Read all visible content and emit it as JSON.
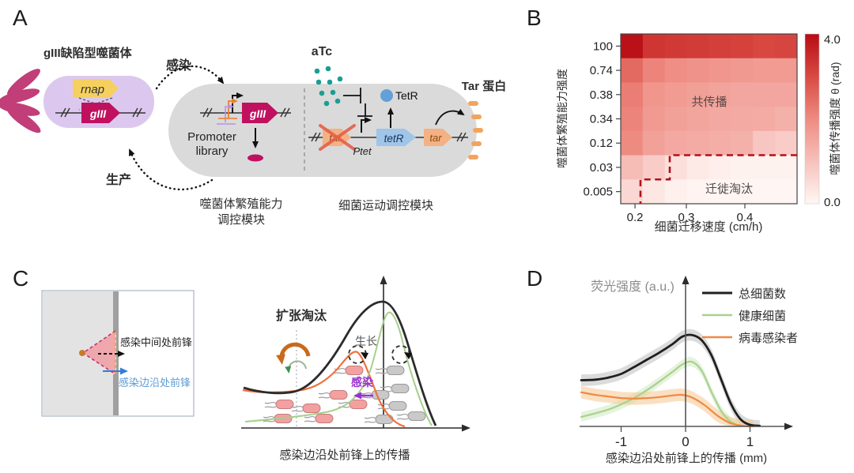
{
  "colors": {
    "accent_red": "#b80b14",
    "boundary_red": "#b2101c",
    "teal_dots": "#199e93",
    "magenta_gene": "#c0115f",
    "phage_body_purple": "#dcc8ef",
    "phage_flagella": "#c13e78",
    "rnap_yellow": "#f6d05e",
    "orange_gene": "#f4b183",
    "blue_gene": "#9fc5e8",
    "tetr_protein_blue": "#64a0d8",
    "cell_gray": "#dadada",
    "infected_pink": "#f2a0a0",
    "healthy_gray": "#c9c9c9",
    "infection_purple": "#9b30d0",
    "edge_front_blue": "#2f7fd6",
    "cross_red": "#e4604a"
  },
  "panels": {
    "A": {
      "label": "A",
      "phage_title": "gIII缺陷型噬菌体",
      "infect": "感染",
      "produce": "生产",
      "rnap": "rnap",
      "gIII_phage": "gIII",
      "promoter_line1": "Promoter",
      "promoter_line2": "library",
      "gIII_cell": "gIII",
      "module1_line1": "噬菌体繁殖能力",
      "module1_line2": "调控模块",
      "aTc": "aTc",
      "TetR_label": "TetR",
      "tar_crossed": "tar",
      "ptet": "Ptet",
      "tetR_gene": "tetR",
      "tar_gene": "tar",
      "tar_protein": "Tar 蛋白",
      "module2": "细菌运动调控模块"
    },
    "B": {
      "label": "B"
    },
    "C": {
      "label": "C",
      "front_mid": "感染中间处前锋",
      "front_edge": "感染边沿处前锋",
      "expansion": "扩张淘汰",
      "growth": "生长",
      "infection": "感染",
      "caption": "感染边沿处前锋上的传播",
      "bacteria": {
        "infected": [
          [
            448,
            469
          ],
          [
            428,
            500
          ],
          [
            360,
            512
          ],
          [
            394,
            517
          ],
          [
            358,
            530
          ],
          [
            410,
            530
          ],
          [
            453,
            512
          ]
        ],
        "healthy": [
          [
            500,
            469
          ],
          [
            506,
            492
          ],
          [
            481,
            500
          ],
          [
            503,
            514
          ],
          [
            527,
            527
          ],
          [
            486,
            531
          ]
        ]
      }
    },
    "D": {
      "label": "D"
    }
  },
  "chart_data": [
    {
      "type": "heatmap",
      "xlabel": "细菌迁移速度 (cm/h)",
      "ylabel": "噬菌体繁殖能力强度",
      "yticklabels": [
        "100",
        "0.74",
        "0.38",
        "0.34",
        "0.12",
        "0.03",
        "0.005"
      ],
      "xticks": [
        {
          "label": "0.2",
          "t": 0.081
        },
        {
          "label": "0.3",
          "t": 0.372
        },
        {
          "label": "0.4",
          "t": 0.704
        }
      ],
      "vmin": 0.0,
      "vmax": 4.0,
      "values": [
        [
          3.9,
          3.3,
          3.25,
          3.2,
          3.15,
          3.1,
          3.0,
          3.05
        ],
        [
          2.5,
          2.1,
          1.95,
          1.85,
          1.8,
          1.75,
          1.7,
          1.7
        ],
        [
          2.2,
          1.8,
          1.7,
          1.62,
          1.55,
          1.5,
          1.5,
          1.5
        ],
        [
          2.1,
          1.72,
          1.6,
          1.52,
          1.45,
          1.42,
          1.4,
          1.3
        ],
        [
          2.0,
          1.6,
          1.45,
          1.4,
          1.35,
          1.3,
          0.9,
          0.8
        ],
        [
          1.1,
          0.8,
          0.45,
          0.25,
          0.15,
          0.1,
          0.1,
          0.1
        ],
        [
          0.6,
          0.3,
          0.12,
          0.05,
          0.02,
          0.02,
          0.02,
          0.02
        ]
      ],
      "regions": [
        {
          "label": "共传播"
        },
        {
          "label": "迁徙淘汰"
        }
      ],
      "boundary_norm": [
        [
          1.0,
          0.714
        ],
        [
          0.278,
          0.714
        ],
        [
          0.278,
          0.857
        ],
        [
          0.112,
          0.857
        ],
        [
          0.112,
          1.0
        ]
      ],
      "colorbar": {
        "label": "噬菌体传播强度 θ (rad)",
        "tick_top": "4.0",
        "tick_bottom": "0.0"
      }
    },
    {
      "type": "line",
      "ylabel": "荧光强度 (a.u.)",
      "xlabel": "感染边沿处前锋上的传播 (mm)",
      "xticks": [
        -1,
        0,
        1
      ],
      "xlim": [
        -1.65,
        1.45
      ],
      "legend_position": "top-right",
      "series": [
        {
          "name": "总细菌数",
          "color": "#1f1f1f",
          "band_color": "#bdbdbd",
          "band_halfwidth": 0.055,
          "x": [
            -1.62,
            -1.4,
            -1.2,
            -1.0,
            -0.8,
            -0.6,
            -0.4,
            -0.2,
            -0.05,
            0.1,
            0.25,
            0.4,
            0.55,
            0.7,
            0.85,
            1.0,
            1.15
          ],
          "y": [
            0.44,
            0.445,
            0.465,
            0.5,
            0.565,
            0.635,
            0.705,
            0.785,
            0.855,
            0.87,
            0.82,
            0.68,
            0.45,
            0.22,
            0.07,
            0.015,
            0.005
          ]
        },
        {
          "name": "健康细菌",
          "color": "#a9d18e",
          "band_color": "#cfe9c0",
          "band_halfwidth": 0.045,
          "x": [
            -1.62,
            -1.4,
            -1.2,
            -1.0,
            -0.8,
            -0.6,
            -0.4,
            -0.2,
            -0.05,
            0.1,
            0.25,
            0.4,
            0.55,
            0.7,
            0.85
          ],
          "y": [
            0.09,
            0.125,
            0.16,
            0.21,
            0.27,
            0.345,
            0.43,
            0.52,
            0.59,
            0.615,
            0.53,
            0.33,
            0.15,
            0.045,
            0.005
          ]
        },
        {
          "name": "病毒感染者",
          "color": "#ee8a45",
          "band_color": "#f6c690",
          "band_halfwidth": 0.06,
          "x": [
            -1.62,
            -1.4,
            -1.2,
            -1.0,
            -0.8,
            -0.6,
            -0.4,
            -0.2,
            -0.05,
            0.1,
            0.3,
            0.5,
            0.7,
            0.9,
            1.05
          ],
          "y": [
            0.325,
            0.3,
            0.285,
            0.27,
            0.265,
            0.27,
            0.28,
            0.295,
            0.3,
            0.275,
            0.2,
            0.1,
            0.03,
            0.005,
            0.0
          ]
        }
      ]
    }
  ]
}
